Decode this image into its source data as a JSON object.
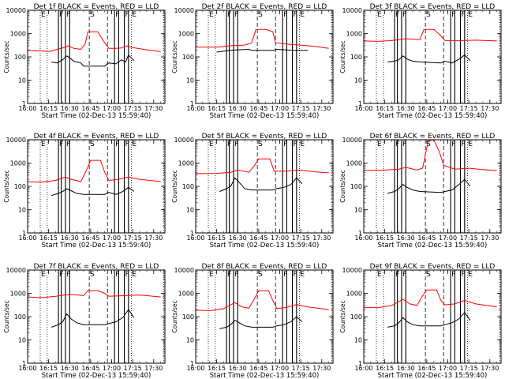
{
  "figure": {
    "xlabel": "Start Time (02-Dec-13 15:59:40)",
    "ylabel": "Counts/sec",
    "x_ticks": [
      "16:00",
      "16:15",
      "16:30",
      "16:45",
      "17:00",
      "17:15",
      "17:30"
    ],
    "y_ticks": [
      "1",
      "10",
      "100",
      "1000",
      "10000"
    ],
    "colors": {
      "events": "#000000",
      "lld": "#ff0000",
      "background": "#ffffff"
    }
  },
  "chart_data": [
    {
      "type": "line",
      "title": "Det 1f BLACK = Events, RED = LLD",
      "markers": [
        "E",
        "F",
        "F",
        "S",
        "F",
        "F",
        "E"
      ],
      "xlim": [
        "16:00",
        "17:38"
      ],
      "ylim": [
        1,
        10000
      ],
      "yscale": "log",
      "series": [
        {
          "name": "Events",
          "color": "#000000",
          "x": [
            "16:17",
            "16:21",
            "16:25",
            "16:28",
            "16:30",
            "16:33",
            "16:38",
            "16:40",
            "16:55",
            "16:58",
            "17:03",
            "17:07",
            "17:10",
            "17:12",
            "17:14",
            "17:16"
          ],
          "y": [
            60,
            55,
            75,
            110,
            90,
            65,
            55,
            40,
            40,
            55,
            50,
            75,
            60,
            120,
            90,
            70
          ]
        },
        {
          "name": "LLD",
          "color": "#ff0000",
          "x": [
            "16:00",
            "16:10",
            "16:16",
            "16:22",
            "16:26",
            "16:29",
            "16:33",
            "16:38",
            "16:41",
            "16:43",
            "16:50",
            "16:55",
            "16:58",
            "17:03",
            "17:07",
            "17:11",
            "17:15",
            "17:25",
            "17:35"
          ],
          "y": [
            190,
            180,
            170,
            220,
            250,
            300,
            230,
            210,
            350,
            1200,
            1200,
            400,
            230,
            230,
            240,
            300,
            250,
            200,
            170
          ]
        }
      ]
    },
    {
      "type": "line",
      "title": "Det 2f BLACK = Events, RED = LLD",
      "markers": [
        "E",
        "F",
        "F",
        "S",
        "F",
        "F",
        "E"
      ],
      "xlim": [
        "16:00",
        "17:38"
      ],
      "ylim": [
        1,
        10000
      ],
      "yscale": "log",
      "series": [
        {
          "name": "Events",
          "color": "#000000",
          "x": [
            "16:15",
            "16:25",
            "16:30",
            "16:38",
            "16:40",
            "16:55",
            "16:58",
            "17:10",
            "17:20"
          ],
          "y": [
            160,
            190,
            200,
            210,
            190,
            190,
            210,
            190,
            190
          ]
        },
        {
          "name": "LLD",
          "color": "#ff0000",
          "x": [
            "16:00",
            "16:15",
            "16:25",
            "16:35",
            "16:40",
            "16:43",
            "16:50",
            "16:55",
            "16:57",
            "17:05",
            "17:15",
            "17:25",
            "17:35"
          ],
          "y": [
            260,
            260,
            300,
            320,
            400,
            1500,
            1500,
            1200,
            400,
            350,
            320,
            280,
            230
          ]
        }
      ]
    },
    {
      "type": "line",
      "title": "Det 3f BLACK = Events, RED = LLD",
      "markers": [
        "E",
        "F",
        "F",
        "S",
        "F",
        "F",
        "E"
      ],
      "xlim": [
        "16:00",
        "17:38"
      ],
      "ylim": [
        1,
        10000
      ],
      "yscale": "log",
      "series": [
        {
          "name": "Events",
          "color": "#000000",
          "x": [
            "16:17",
            "16:22",
            "16:25",
            "16:28",
            "16:31",
            "16:35",
            "16:40",
            "16:55",
            "16:58",
            "17:03",
            "17:08",
            "17:12",
            "17:16"
          ],
          "y": [
            60,
            65,
            75,
            110,
            80,
            65,
            60,
            55,
            65,
            55,
            80,
            120,
            70
          ]
        },
        {
          "name": "LLD",
          "color": "#ff0000",
          "x": [
            "16:00",
            "16:10",
            "16:20",
            "16:30",
            "16:40",
            "16:43",
            "16:50",
            "16:55",
            "16:58",
            "17:10",
            "17:20",
            "17:35"
          ],
          "y": [
            480,
            460,
            500,
            600,
            550,
            1500,
            1500,
            800,
            500,
            500,
            520,
            480
          ]
        }
      ]
    },
    {
      "type": "line",
      "title": "Det 4f BLACK = Events, RED = LLD",
      "markers": [
        "E",
        "F",
        "F",
        "S",
        "F",
        "F",
        "E"
      ],
      "xlim": [
        "16:00",
        "17:38"
      ],
      "ylim": [
        1,
        10000
      ],
      "yscale": "log",
      "series": [
        {
          "name": "Events",
          "color": "#000000",
          "x": [
            "16:17",
            "16:22",
            "16:25",
            "16:28",
            "16:31",
            "16:35",
            "16:40",
            "16:55",
            "16:58",
            "17:03",
            "17:08",
            "17:12",
            "17:16"
          ],
          "y": [
            40,
            50,
            60,
            80,
            65,
            50,
            45,
            45,
            55,
            45,
            60,
            90,
            60
          ]
        },
        {
          "name": "LLD",
          "color": "#ff0000",
          "x": [
            "16:00",
            "16:10",
            "16:20",
            "16:27",
            "16:31",
            "16:38",
            "16:42",
            "16:45",
            "16:52",
            "16:55",
            "16:58",
            "17:05",
            "17:12",
            "17:20",
            "17:35"
          ],
          "y": [
            160,
            150,
            180,
            250,
            200,
            160,
            500,
            1300,
            1300,
            400,
            180,
            200,
            250,
            200,
            160
          ]
        }
      ]
    },
    {
      "type": "line",
      "title": "Det 5f BLACK = Events, RED = LLD",
      "markers": [
        "E",
        "F",
        "F",
        "S",
        "F",
        "F",
        "E"
      ],
      "xlim": [
        "16:00",
        "17:38"
      ],
      "ylim": [
        1,
        10000
      ],
      "yscale": "log",
      "series": [
        {
          "name": "Events",
          "color": "#000000",
          "x": [
            "16:17",
            "16:22",
            "16:25",
            "16:28",
            "16:31",
            "16:35",
            "16:40",
            "16:55",
            "16:58",
            "17:03",
            "17:08",
            "17:12",
            "17:16"
          ],
          "y": [
            60,
            80,
            100,
            230,
            150,
            80,
            70,
            70,
            80,
            90,
            120,
            230,
            130
          ]
        },
        {
          "name": "LLD",
          "color": "#ff0000",
          "x": [
            "16:00",
            "16:15",
            "16:25",
            "16:30",
            "16:38",
            "16:42",
            "16:45",
            "16:53",
            "16:56",
            "17:05",
            "17:15",
            "17:25",
            "17:35"
          ],
          "y": [
            350,
            360,
            400,
            500,
            400,
            800,
            1500,
            1500,
            450,
            450,
            500,
            420,
            380
          ]
        }
      ]
    },
    {
      "type": "line",
      "title": "Det 6f BLACK = Events, RED = LLD",
      "markers": [
        "E",
        "F",
        "F",
        "S",
        "F",
        "F",
        "E"
      ],
      "xlim": [
        "16:00",
        "17:38"
      ],
      "ylim": [
        1,
        10000
      ],
      "yscale": "log",
      "series": [
        {
          "name": "Events",
          "color": "#000000",
          "x": [
            "16:17",
            "16:22",
            "16:25",
            "16:28",
            "16:31",
            "16:35",
            "16:40",
            "16:55",
            "16:58",
            "17:03",
            "17:08",
            "17:12",
            "17:16"
          ],
          "y": [
            50,
            60,
            80,
            120,
            90,
            70,
            60,
            55,
            60,
            70,
            120,
            200,
            100
          ]
        },
        {
          "name": "LLD",
          "color": "#ff0000",
          "x": [
            "16:00",
            "16:15",
            "16:25",
            "16:30",
            "16:38",
            "16:42",
            "16:46",
            "16:50",
            "16:54",
            "16:57",
            "17:05",
            "17:15",
            "17:25",
            "17:35"
          ],
          "y": [
            480,
            500,
            550,
            650,
            500,
            600,
            9000,
            10000,
            3000,
            800,
            550,
            600,
            520,
            480
          ]
        }
      ]
    },
    {
      "type": "line",
      "title": "Det 7f BLACK = Events, RED = LLD",
      "markers": [
        "E",
        "F",
        "F",
        "S",
        "F",
        "F",
        "E"
      ],
      "xlim": [
        "16:00",
        "17:38"
      ],
      "ylim": [
        1,
        10000
      ],
      "yscale": "log",
      "series": [
        {
          "name": "Events",
          "color": "#000000",
          "x": [
            "16:17",
            "16:22",
            "16:25",
            "16:28",
            "16:31",
            "16:35",
            "16:40",
            "16:55",
            "16:58",
            "17:03",
            "17:08",
            "17:12",
            "17:16"
          ],
          "y": [
            35,
            45,
            60,
            130,
            80,
            55,
            45,
            45,
            50,
            60,
            90,
            200,
            90
          ]
        },
        {
          "name": "LLD",
          "color": "#ff0000",
          "x": [
            "16:00",
            "16:10",
            "16:20",
            "16:30",
            "16:40",
            "16:43",
            "16:50",
            "16:55",
            "16:58",
            "17:10",
            "17:20",
            "17:35"
          ],
          "y": [
            700,
            650,
            750,
            900,
            800,
            1300,
            1300,
            1000,
            750,
            800,
            850,
            700
          ]
        }
      ]
    },
    {
      "type": "line",
      "title": "Det 8f BLACK = Events, RED = LLD",
      "markers": [
        "E",
        "F",
        "F",
        "S",
        "F",
        "F",
        "E"
      ],
      "xlim": [
        "16:00",
        "17:38"
      ],
      "ylim": [
        1,
        10000
      ],
      "yscale": "log",
      "series": [
        {
          "name": "Events",
          "color": "#000000",
          "x": [
            "16:17",
            "16:22",
            "16:25",
            "16:28",
            "16:31",
            "16:35",
            "16:40",
            "16:55",
            "16:58",
            "17:03",
            "17:08",
            "17:12",
            "17:16"
          ],
          "y": [
            30,
            35,
            45,
            70,
            55,
            40,
            35,
            35,
            40,
            45,
            60,
            100,
            60
          ]
        },
        {
          "name": "LLD",
          "color": "#ff0000",
          "x": [
            "16:00",
            "16:10",
            "16:20",
            "16:28",
            "16:33",
            "16:38",
            "16:42",
            "16:45",
            "16:52",
            "16:55",
            "16:58",
            "17:05",
            "17:12",
            "17:20",
            "17:35"
          ],
          "y": [
            190,
            180,
            220,
            400,
            260,
            230,
            600,
            1300,
            1300,
            500,
            220,
            250,
            330,
            260,
            200
          ]
        }
      ]
    },
    {
      "type": "line",
      "title": "Det 9f BLACK = Events, RED = LLD",
      "markers": [
        "E",
        "F",
        "F",
        "S",
        "F",
        "F",
        "E"
      ],
      "xlim": [
        "16:00",
        "17:38"
      ],
      "ylim": [
        1,
        10000
      ],
      "yscale": "log",
      "series": [
        {
          "name": "Events",
          "color": "#000000",
          "x": [
            "16:17",
            "16:22",
            "16:25",
            "16:28",
            "16:31",
            "16:35",
            "16:40",
            "16:55",
            "16:58",
            "17:03",
            "17:08",
            "17:12",
            "17:16"
          ],
          "y": [
            35,
            40,
            55,
            90,
            60,
            45,
            40,
            40,
            45,
            55,
            80,
            150,
            70
          ]
        },
        {
          "name": "LLD",
          "color": "#ff0000",
          "x": [
            "16:00",
            "16:10",
            "16:20",
            "16:28",
            "16:33",
            "16:38",
            "16:42",
            "16:45",
            "16:52",
            "16:55",
            "16:58",
            "17:05",
            "17:12",
            "17:20",
            "17:35"
          ],
          "y": [
            250,
            240,
            300,
            550,
            350,
            300,
            800,
            1400,
            1400,
            500,
            320,
            350,
            500,
            350,
            260
          ]
        }
      ]
    }
  ]
}
